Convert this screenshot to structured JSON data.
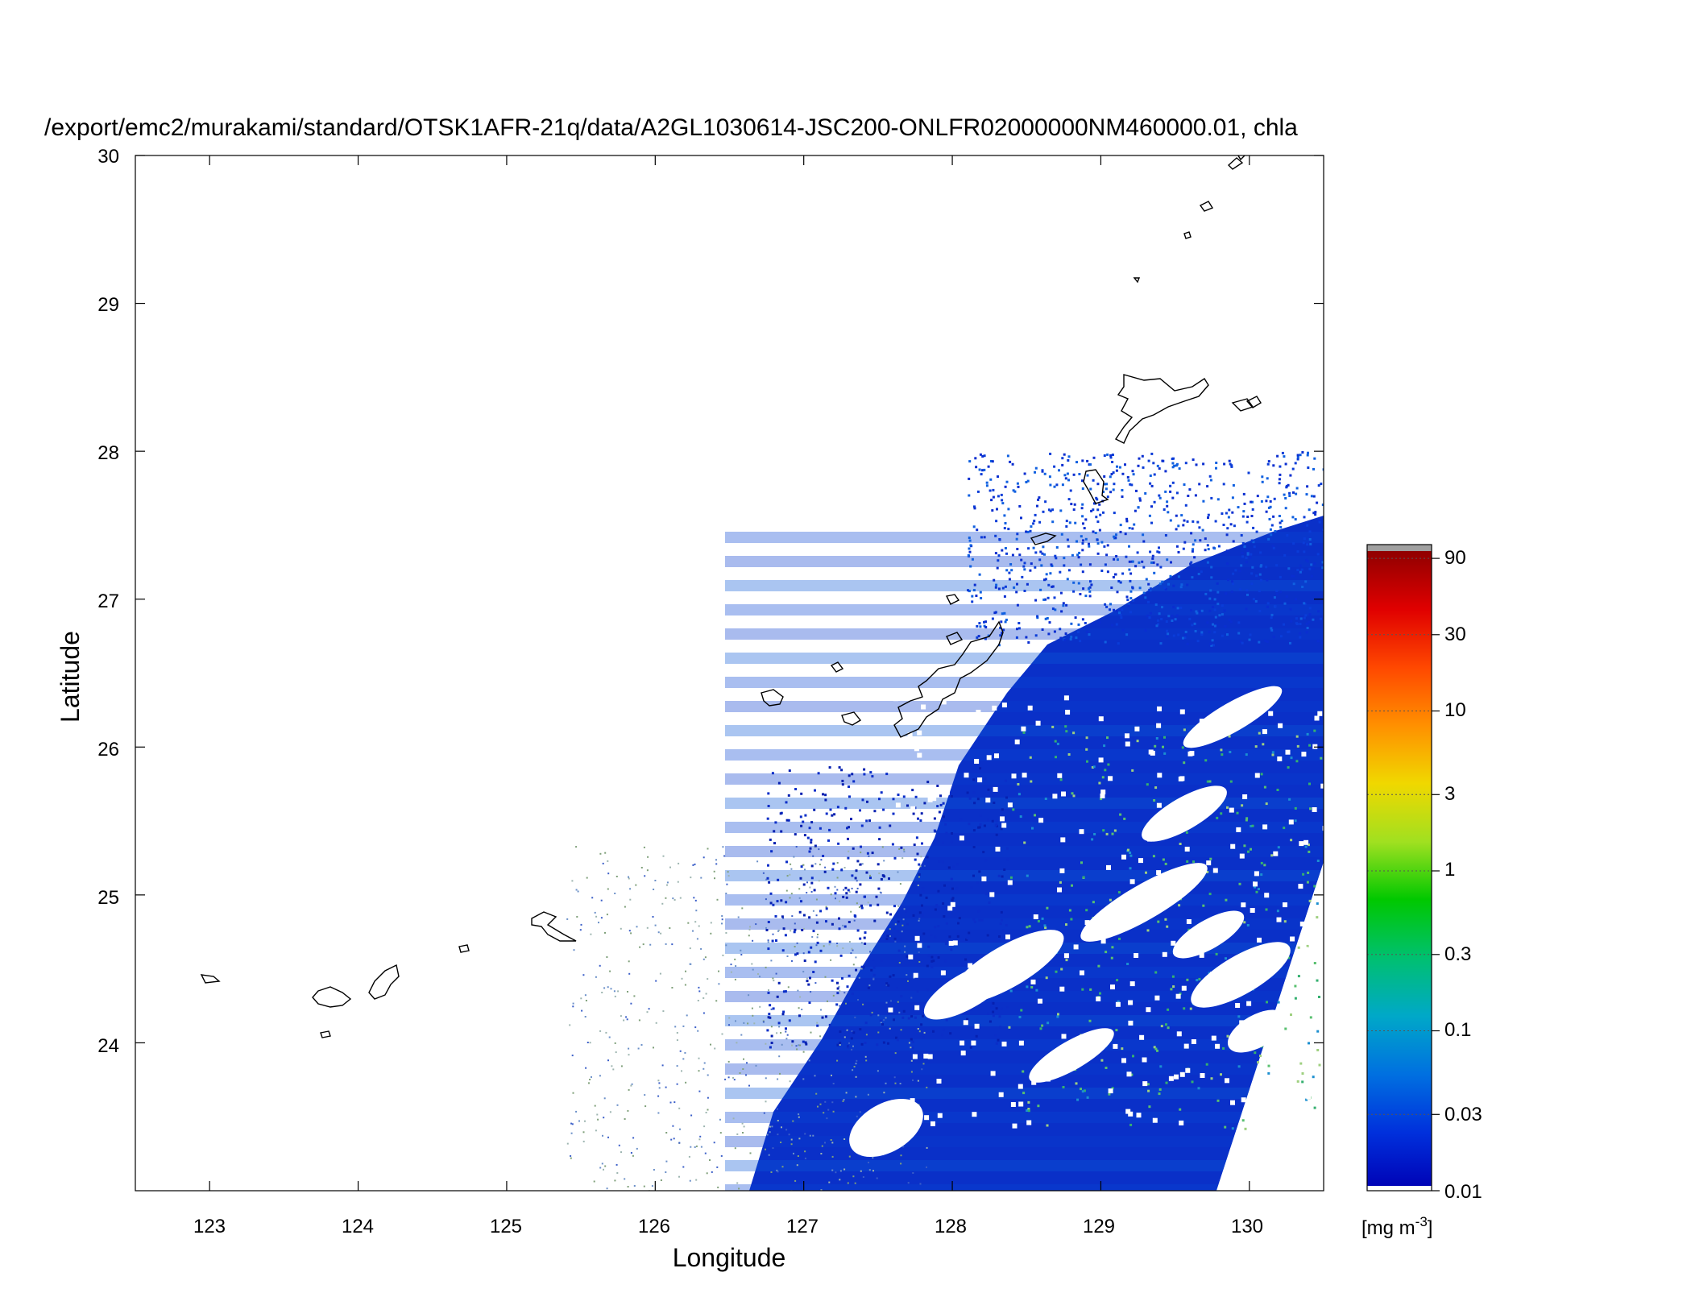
{
  "title": "/export/emc2/murakami/standard/OTSK1AFR-21q/data/A2GL1030614-JSC200-ONLFR02000000NM460000.01, chla",
  "axes": {
    "xlabel": "Longitude",
    "ylabel": "Latitude",
    "x_ticks": [
      "123",
      "124",
      "125",
      "126",
      "127",
      "128",
      "129",
      "130"
    ],
    "y_ticks": [
      "30",
      "29",
      "28",
      "27",
      "26",
      "25",
      "24"
    ]
  },
  "colorbar": {
    "tick_labels": [
      "90",
      "30",
      "10",
      "3",
      "1",
      "0.3",
      "0.1",
      "0.03",
      "0.01"
    ],
    "unit_label": "[mg m",
    "unit_exponent": "-3",
    "unit_close": "]",
    "colors": [
      "#0000b4",
      "#0030dc",
      "#0070e0",
      "#00a8c8",
      "#00c070",
      "#00c800",
      "#a0e020",
      "#f0d800",
      "#ff9000",
      "#ff4800",
      "#e00000",
      "#900000"
    ],
    "top_overflow_color": "#a0a0a0"
  },
  "chart_data": {
    "type": "heatmap",
    "variable": "chla",
    "xlim": [
      122.5,
      130.5
    ],
    "ylim": [
      23,
      30
    ],
    "colorbar_scale": "log",
    "colorbar_range": [
      0.01,
      100
    ]
  }
}
